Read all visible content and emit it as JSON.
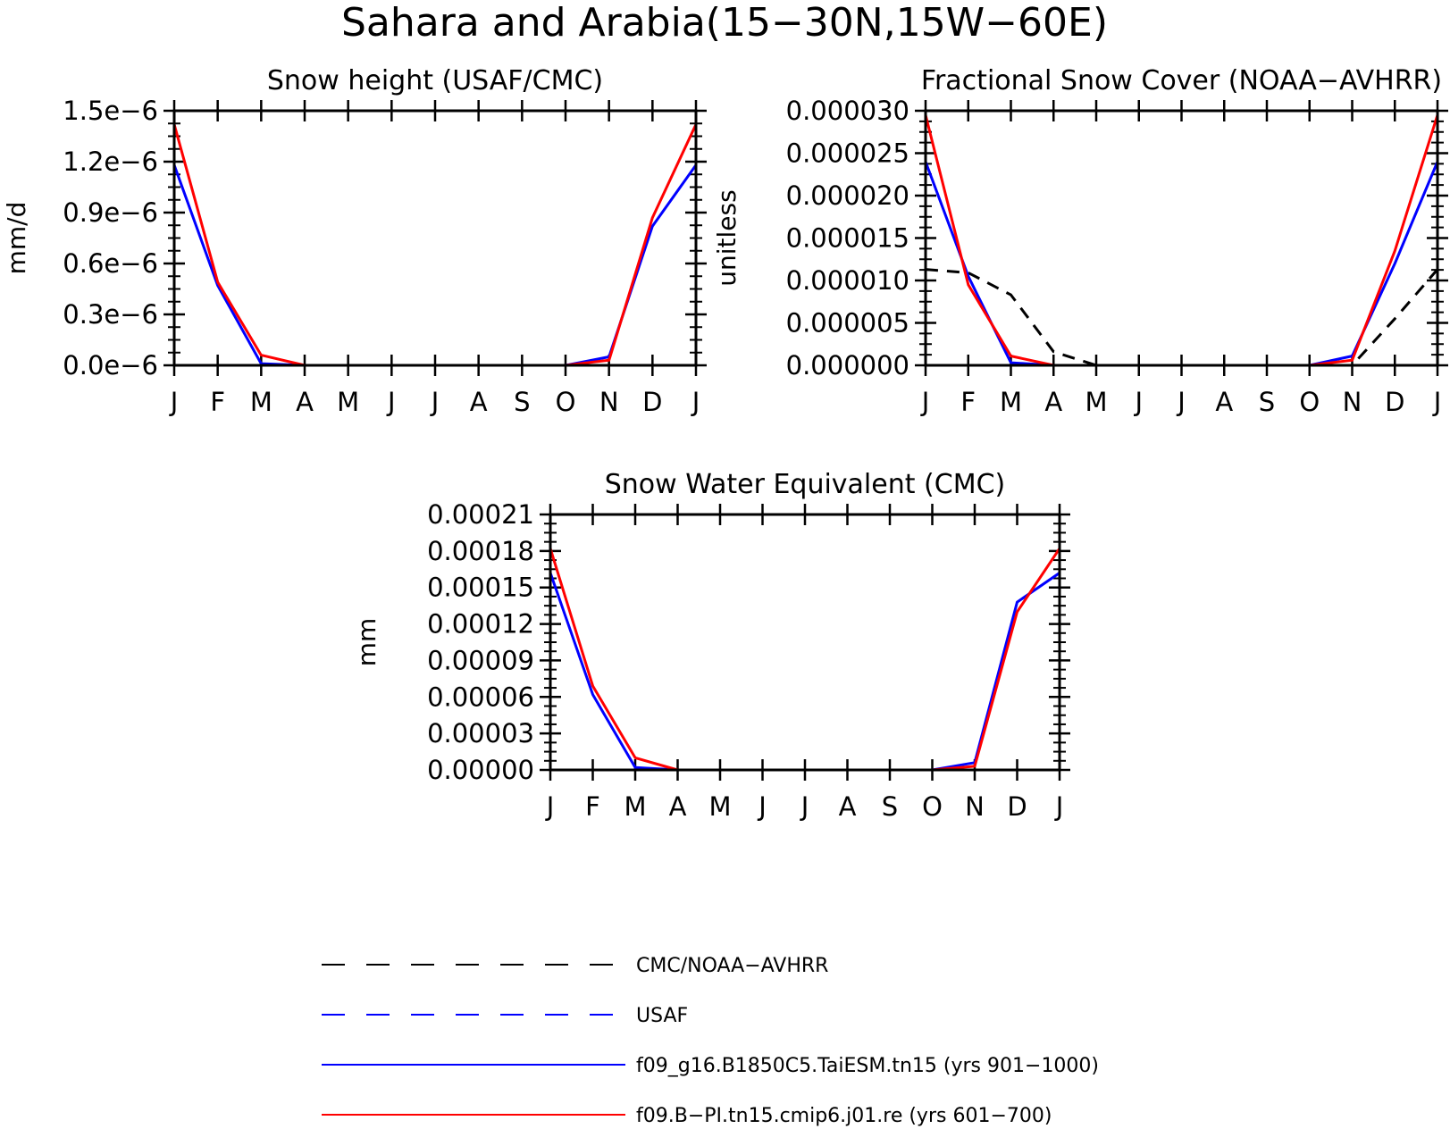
{
  "figure_title": "Sahara and Arabia(15−30N,15W−60E)",
  "months": [
    "J",
    "F",
    "M",
    "A",
    "M",
    "J",
    "J",
    "A",
    "S",
    "O",
    "N",
    "D",
    "J"
  ],
  "colors": {
    "obs_cmc": "#000000",
    "obs_usaf": "#0000ff",
    "model_a": "#0000ff",
    "model_b": "#ff0000"
  },
  "chart_data": [
    {
      "type": "line",
      "title": "Snow height (USAF/CMC)",
      "ylabel": "mm/d",
      "ylim": [
        0,
        1.5e-06
      ],
      "yticks": [
        0,
        3e-07,
        6e-07,
        9e-07,
        1.2e-06,
        1.5e-06
      ],
      "ytick_labels": [
        "0.0e−6",
        "0.3e−6",
        "0.6e−6",
        "0.9e−6",
        "1.2e−6",
        "1.5e−6"
      ],
      "categories": [
        "J",
        "F",
        "M",
        "A",
        "M",
        "J",
        "J",
        "A",
        "S",
        "O",
        "N",
        "D",
        "J"
      ],
      "series": [
        {
          "name": "USAF",
          "style": "dashed",
          "color": "#0000ff",
          "values": [
            0,
            0,
            0,
            0,
            0,
            0,
            0,
            0,
            0,
            0,
            0,
            0,
            0
          ]
        },
        {
          "name": "f09_g16.B1850C5.TaiESM.tn15 (yrs 901−1000)",
          "style": "solid",
          "color": "#0000ff",
          "values": [
            1.18e-06,
            4.7e-07,
            1e-08,
            0,
            0,
            0,
            0,
            0,
            0,
            0,
            5e-08,
            8.2e-07,
            1.18e-06
          ]
        },
        {
          "name": "f09.B−PI.tn15.cmip6.j01.re (yrs 601−700)",
          "style": "solid",
          "color": "#ff0000",
          "values": [
            1.42e-06,
            4.9e-07,
            6e-08,
            0,
            0,
            0,
            0,
            0,
            0,
            0,
            3e-08,
            8.7e-07,
            1.42e-06
          ]
        }
      ]
    },
    {
      "type": "line",
      "title": "Fractional Snow Cover (NOAA−AVHRR)",
      "ylabel": "unitless",
      "ylim": [
        0,
        3e-05
      ],
      "yticks": [
        0,
        5e-06,
        1e-05,
        1.5e-05,
        2e-05,
        2.5e-05,
        3e-05
      ],
      "ytick_labels": [
        "0.000000",
        "0.000005",
        "0.000010",
        "0.000015",
        "0.000020",
        "0.000025",
        "0.000030"
      ],
      "categories": [
        "J",
        "F",
        "M",
        "A",
        "M",
        "J",
        "J",
        "A",
        "S",
        "O",
        "N",
        "D",
        "J"
      ],
      "series": [
        {
          "name": "CMC/NOAA−AVHRR",
          "style": "dashed",
          "color": "#000000",
          "values": [
            1.13e-05,
            1.09e-05,
            8.3e-06,
            1.6e-06,
            0,
            0,
            0,
            0,
            0,
            0,
            0,
            5.5e-06,
            1.13e-05
          ]
        },
        {
          "name": "f09_g16.B1850C5.TaiESM.tn15 (yrs 901−1000)",
          "style": "solid",
          "color": "#0000ff",
          "values": [
            2.4e-05,
            1.05e-05,
            3e-07,
            0,
            0,
            0,
            0,
            0,
            0,
            0,
            1.1e-06,
            1.2e-05,
            2.4e-05
          ]
        },
        {
          "name": "f09.B−PI.tn15.cmip6.j01.re (yrs 601−700)",
          "style": "solid",
          "color": "#ff0000",
          "values": [
            2.95e-05,
            9.5e-06,
            1.1e-06,
            0,
            0,
            0,
            0,
            0,
            0,
            0,
            6e-07,
            1.35e-05,
            2.95e-05
          ]
        }
      ]
    },
    {
      "type": "line",
      "title": "Snow Water Equivalent (CMC)",
      "ylabel": "mm",
      "ylim": [
        0,
        0.00021
      ],
      "yticks": [
        0,
        3e-05,
        6e-05,
        9e-05,
        0.00012,
        0.00015,
        0.00018,
        0.00021
      ],
      "ytick_labels": [
        "0.00000",
        "0.00003",
        "0.00006",
        "0.00009",
        "0.00012",
        "0.00015",
        "0.00018",
        "0.00021"
      ],
      "categories": [
        "J",
        "F",
        "M",
        "A",
        "M",
        "J",
        "J",
        "A",
        "S",
        "O",
        "N",
        "D",
        "J"
      ],
      "series": [
        {
          "name": "CMC/NOAA−AVHRR",
          "style": "dashed",
          "color": "#000000",
          "values": [
            0,
            0,
            0,
            0,
            0,
            0,
            0,
            0,
            0,
            0,
            0,
            0,
            0
          ]
        },
        {
          "name": "f09_g16.B1850C5.TaiESM.tn15 (yrs 901−1000)",
          "style": "solid",
          "color": "#0000ff",
          "values": [
            0.000162,
            6.2e-05,
            2e-06,
            0,
            0,
            0,
            0,
            0,
            0,
            0,
            6e-06,
            0.000138,
            0.000162
          ]
        },
        {
          "name": "f09.B−PI.tn15.cmip6.j01.re (yrs 601−700)",
          "style": "solid",
          "color": "#ff0000",
          "values": [
            0.000182,
            6.9e-05,
            1e-05,
            0,
            0,
            0,
            0,
            0,
            0,
            0,
            3e-06,
            0.00013,
            0.000182
          ]
        }
      ]
    }
  ],
  "legend": [
    {
      "label": "CMC/NOAA−AVHRR",
      "style": "dashed",
      "color": "#000000"
    },
    {
      "label": "USAF",
      "style": "dashed",
      "color": "#0000ff"
    },
    {
      "label": "f09_g16.B1850C5.TaiESM.tn15 (yrs 901−1000)",
      "style": "solid",
      "color": "#0000ff"
    },
    {
      "label": "f09.B−PI.tn15.cmip6.j01.re (yrs 601−700)",
      "style": "solid",
      "color": "#ff0000"
    }
  ]
}
